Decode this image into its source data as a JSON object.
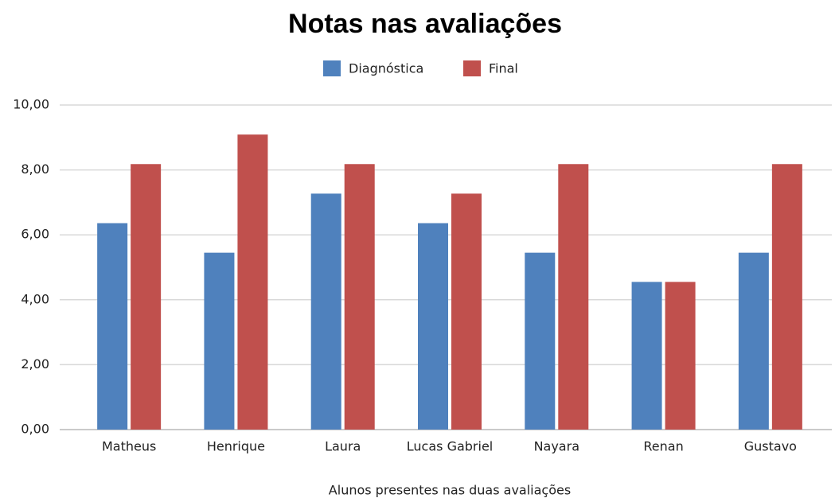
{
  "chart_data": {
    "type": "bar",
    "title": "Notas nas avaliações",
    "x_label": "Alunos presentes nas duas avaliações",
    "categories": [
      "Matheus",
      "Henrique",
      "Laura",
      "Lucas Gabriel",
      "Nayara",
      "Renan",
      "Gustavo"
    ],
    "series": [
      {
        "name": "Diagnóstica",
        "color": "#4f81bd",
        "values": [
          6.36,
          5.45,
          7.27,
          6.36,
          5.45,
          4.55,
          5.45
        ]
      },
      {
        "name": "Final",
        "color": "#c0504d",
        "values": [
          8.18,
          9.09,
          8.18,
          7.27,
          8.18,
          4.55,
          8.18
        ]
      }
    ],
    "ylim": [
      0,
      10
    ],
    "yticks": [
      {
        "value": 0,
        "label": "0,00"
      },
      {
        "value": 2,
        "label": "2,00"
      },
      {
        "value": 4,
        "label": "4,00"
      },
      {
        "value": 6,
        "label": "6,00"
      },
      {
        "value": 8,
        "label": "8,00"
      },
      {
        "value": 10,
        "label": "10,00"
      }
    ],
    "grid": true,
    "legend": "top"
  }
}
